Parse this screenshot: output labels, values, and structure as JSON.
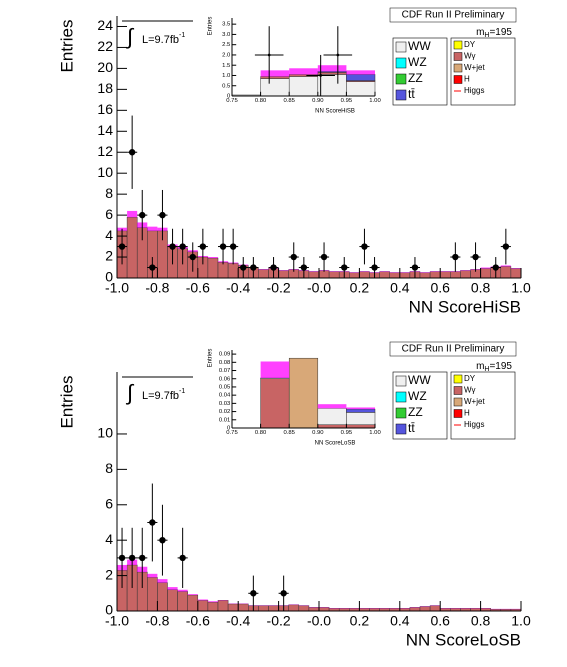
{
  "chart_data": [
    {
      "type": "histogram",
      "title": "CDF Run II Preliminary",
      "x_label": "NN ScoreHiSB",
      "y_label": "Entries",
      "luminosity": {
        "text": "L=9.7fb",
        "superscript": "-1"
      },
      "mass": {
        "text": "m",
        "subscript": "H",
        "suffix": "=195"
      },
      "bins": [
        -1,
        -0.95,
        -0.9,
        -0.85,
        -0.8,
        -0.75,
        -0.7,
        -0.65,
        -0.6,
        -0.55,
        -0.5,
        -0.45,
        -0.4,
        -0.35,
        -0.3,
        -0.25,
        -0.2,
        -0.15,
        -0.1,
        -0.05,
        0,
        0.05,
        0.1,
        0.15,
        0.2,
        0.25,
        0.3,
        0.35,
        0.4,
        0.45,
        0.5,
        0.55,
        0.6,
        0.65,
        0.7,
        0.75,
        0.8,
        0.85,
        0.9,
        0.95,
        1
      ],
      "background": {
        "color": "#c86464",
        "values": [
          4.5,
          5.8,
          4.8,
          4.5,
          4.5,
          3.0,
          2.8,
          2.5,
          2.0,
          1.9,
          1.5,
          1.4,
          1.2,
          1.0,
          0.8,
          0.9,
          0.7,
          0.8,
          0.7,
          0.6,
          0.7,
          0.6,
          0.6,
          0.5,
          0.6,
          0.5,
          0.6,
          0.5,
          0.5,
          0.6,
          0.5,
          0.6,
          0.6,
          0.6,
          0.7,
          0.8,
          0.9,
          1.0,
          1.1,
          0.9
        ]
      },
      "signal": {
        "color": "#ff00ff",
        "values": [
          0.3,
          0.6,
          0.5,
          0.4,
          0.3,
          0.2,
          0.2,
          0.15,
          0.1,
          0.1,
          0.1,
          0.08,
          0.08,
          0.05,
          0.05,
          0.05,
          0.05,
          0.05,
          0.05,
          0.05,
          0.05,
          0.05,
          0.05,
          0.05,
          0.05,
          0.05,
          0.05,
          0.05,
          0.05,
          0.05,
          0.05,
          0.05,
          0.05,
          0.05,
          0.05,
          0.05,
          0.1,
          0.1,
          0.1,
          0.05
        ]
      },
      "data": {
        "color": "#000000",
        "x": [
          -0.975,
          -0.925,
          -0.875,
          -0.825,
          -0.775,
          -0.725,
          -0.675,
          -0.625,
          -0.575,
          -0.475,
          -0.425,
          -0.375,
          -0.325,
          -0.225,
          -0.125,
          -0.075,
          0.025,
          0.125,
          0.225,
          0.275,
          0.475,
          0.675,
          0.775,
          0.875,
          0.925
        ],
        "y": [
          3,
          12,
          6,
          1,
          6,
          3,
          3,
          2,
          3,
          3,
          3,
          1,
          1,
          1,
          2,
          1,
          2,
          1,
          3,
          1,
          1,
          2,
          2,
          1,
          3
        ],
        "errors": [
          1.7,
          3.5,
          2.4,
          1,
          2.4,
          1.7,
          1.7,
          1.4,
          1.7,
          1.7,
          1.7,
          1,
          1,
          1,
          1.4,
          1,
          1.4,
          1,
          1.7,
          1,
          1,
          1.4,
          1.4,
          1,
          1.7
        ]
      },
      "xlim": [
        -1,
        1
      ],
      "ylim": [
        0,
        25
      ],
      "xticks": [
        {
          "value": -1,
          "label": "-1.0"
        },
        -0.8,
        -0.6,
        -0.4,
        -0.2,
        {
          "value": 0,
          "label": "-0.0"
        },
        0.2,
        0.4,
        0.6,
        0.8,
        {
          "value": 1,
          "label": "1.0"
        }
      ],
      "yticks": [
        0,
        2,
        4,
        6,
        8,
        10,
        12,
        14,
        16,
        18,
        20,
        22,
        24
      ],
      "legend": [
        {
          "label": "WW",
          "color": "#f0f0f0"
        },
        {
          "label": "WZ",
          "color": "#00ffff"
        },
        {
          "label": "ZZ",
          "color": "#33cc33"
        },
        {
          "label": "tt̄",
          "color": "#5555dd"
        },
        {
          "label": "DY",
          "color": "#ffff00"
        },
        {
          "label": "Wγ",
          "color": "#c86464"
        },
        {
          "label": "W+jet",
          "color": "#d8a878"
        },
        {
          "label": "H",
          "color": "#ff0000"
        },
        {
          "label": "Higgs",
          "color": "#ff0000"
        }
      ],
      "inset": {
        "x_label": "NN ScoreHiSB",
        "y_label": "Entries",
        "bins": [
          0.75,
          0.8,
          0.85,
          0.9,
          0.95,
          1
        ],
        "layers": [
          {
            "color": "#f0f0f0",
            "values": [
              0.05,
              0.85,
              0.95,
              1.05,
              0.7
            ]
          },
          {
            "color": "#c86464",
            "values": [
              0,
              0.1,
              0.1,
              0.1,
              0.05
            ]
          },
          {
            "color": "#5555dd",
            "values": [
              0,
              0,
              0,
              0.05,
              0.3
            ]
          }
        ],
        "signal": {
          "color": "#ff00ff",
          "values": [
            0,
            0.3,
            0.3,
            0.3,
            0.2
          ]
        },
        "data": {
          "color": "#000000",
          "x": [
            0.815,
            0.905,
            0.935
          ],
          "y": [
            2,
            1,
            2
          ],
          "errors": [
            1.4,
            1,
            1.4
          ]
        },
        "xlim": [
          0.75,
          1
        ],
        "ylim": [
          0,
          3.8
        ],
        "xticks": [
          0.75,
          {
            "value": 0.8,
            "label": "0.80"
          },
          0.85,
          {
            "value": 0.9,
            "label": "0.90"
          },
          0.95,
          {
            "value": 1,
            "label": "1.00"
          }
        ],
        "yticks": [
          0,
          0.5,
          {
            "value": 1,
            "label": "1.0"
          },
          1.5,
          {
            "value": 2,
            "label": "2.0"
          },
          2.5,
          {
            "value": 3,
            "label": "3.0"
          },
          3.5
        ]
      }
    },
    {
      "type": "histogram",
      "title": "CDF Run II Preliminary",
      "x_label": "NN ScoreLoSB",
      "y_label": "Entries",
      "luminosity": {
        "text": "L=9.7fb",
        "superscript": "-1"
      },
      "mass": {
        "text": "m",
        "subscript": "H",
        "suffix": "=195"
      },
      "bins": [
        -1,
        -0.95,
        -0.9,
        -0.85,
        -0.8,
        -0.75,
        -0.7,
        -0.65,
        -0.6,
        -0.55,
        -0.5,
        -0.45,
        -0.4,
        -0.35,
        -0.3,
        -0.25,
        -0.2,
        -0.15,
        -0.1,
        -0.05,
        0,
        0.05,
        0.1,
        0.15,
        0.2,
        0.25,
        0.3,
        0.35,
        0.4,
        0.45,
        0.5,
        0.55,
        0.6,
        0.65,
        0.7,
        0.75,
        0.8,
        0.85,
        0.9,
        0.95,
        1
      ],
      "background": {
        "color": "#c86464",
        "values": [
          2.3,
          2.6,
          2.2,
          1.9,
          1.6,
          1.2,
          1.1,
          0.9,
          0.6,
          0.5,
          0.6,
          0.4,
          0.4,
          0.3,
          0.3,
          0.3,
          0.3,
          0.35,
          0.3,
          0.2,
          0.2,
          0.15,
          0.15,
          0.15,
          0.15,
          0.15,
          0.15,
          0.15,
          0.15,
          0.2,
          0.25,
          0.3,
          0.15,
          0.15,
          0.15,
          0.15,
          0.15,
          0.1,
          0.1,
          0.1
        ]
      },
      "signal": {
        "color": "#ff00ff",
        "values": [
          0.3,
          0.3,
          0.3,
          0.2,
          0.2,
          0.15,
          0.1,
          0.05,
          0.05,
          0.05,
          0.02,
          0.02,
          0.02,
          0.02,
          0.02,
          0.02,
          0.02,
          0.02,
          0.02,
          0.02,
          0.02,
          0.02,
          0.02,
          0.02,
          0.02,
          0.02,
          0.02,
          0.02,
          0.02,
          0.02,
          0.02,
          0.02,
          0.02,
          0.02,
          0.02,
          0.02,
          0.02,
          0.02,
          0.02,
          0.02
        ]
      },
      "data": {
        "color": "#000000",
        "x": [
          -0.975,
          -0.925,
          -0.875,
          -0.825,
          -0.775,
          -0.675,
          -0.325,
          -0.175
        ],
        "y": [
          3,
          3,
          3,
          5,
          4,
          3,
          1,
          1
        ],
        "errors": [
          1.7,
          1.7,
          1.7,
          2.2,
          2,
          1.7,
          1,
          1
        ]
      },
      "xlim": [
        -1,
        1
      ],
      "ylim": [
        0,
        13.5
      ],
      "xticks": [
        {
          "value": -1,
          "label": "-1.0"
        },
        -0.8,
        -0.6,
        -0.4,
        -0.2,
        {
          "value": 0,
          "label": "-0.0"
        },
        0.2,
        0.4,
        0.6,
        0.8,
        {
          "value": 1,
          "label": "1.0"
        }
      ],
      "yticks": [
        0,
        2,
        4,
        6,
        8,
        10
      ],
      "legend": [
        {
          "label": "WW",
          "color": "#f0f0f0"
        },
        {
          "label": "WZ",
          "color": "#00ffff"
        },
        {
          "label": "ZZ",
          "color": "#33cc33"
        },
        {
          "label": "tt̄",
          "color": "#5555dd"
        },
        {
          "label": "DY",
          "color": "#ffff00"
        },
        {
          "label": "Wγ",
          "color": "#c86464"
        },
        {
          "label": "W+jet",
          "color": "#d8a878"
        },
        {
          "label": "H",
          "color": "#ff0000"
        },
        {
          "label": "Higgs",
          "color": "#ff0000"
        }
      ],
      "inset": {
        "x_label": "NN ScoreLoSB",
        "y_label": "Entries",
        "bins": [
          0.75,
          0.8,
          0.85,
          0.9,
          0.95,
          1
        ],
        "layers": [
          {
            "color": "#c86464",
            "values": [
              0,
              0.06,
              0,
              0.004,
              0.004
            ]
          },
          {
            "color": "#d8a878",
            "values": [
              0,
              0,
              0.085,
              0,
              0
            ]
          },
          {
            "color": "#f0f0f0",
            "values": [
              0,
              0.001,
              0,
              0.02,
              0.015
            ]
          },
          {
            "color": "#5555dd",
            "values": [
              0,
              0,
              0,
              0,
              0.004
            ]
          }
        ],
        "signal": {
          "color": "#ff00ff",
          "values": [
            0,
            0.02,
            0,
            0.005,
            0.002
          ]
        },
        "xlim": [
          0.75,
          1
        ],
        "ylim": [
          0,
          0.095
        ],
        "xticks": [
          0.75,
          {
            "value": 0.8,
            "label": "0.80"
          },
          0.85,
          {
            "value": 0.9,
            "label": "0.90"
          },
          0.95,
          {
            "value": 1,
            "label": "1.00"
          }
        ],
        "yticks": [
          0,
          0.01,
          0.02,
          0.03,
          0.04,
          0.05,
          0.06,
          0.07,
          0.08,
          0.09
        ]
      }
    }
  ]
}
